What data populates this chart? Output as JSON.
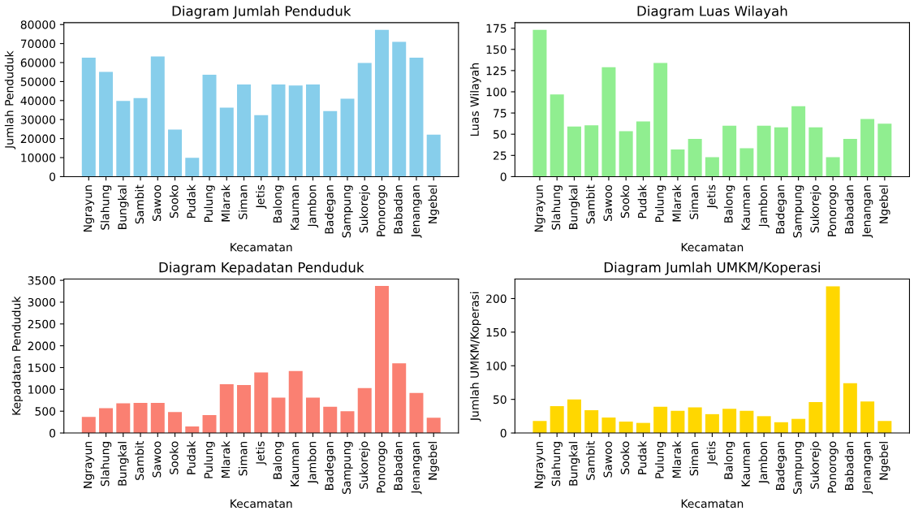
{
  "chart_data": [
    {
      "type": "bar",
      "title": "Diagram Jumlah Penduduk",
      "xlabel": "Kecamatan",
      "ylabel": "Jumlah Penduduk",
      "color": "#87ceeb",
      "categories": [
        "Ngrayun",
        "Slahung",
        "Bungkal",
        "Sambit",
        "Sawoo",
        "Sooko",
        "Pudak",
        "Pulung",
        "Mlarak",
        "Siman",
        "Jetis",
        "Balong",
        "Kauman",
        "Jambon",
        "Badegan",
        "Sampung",
        "Sukorejo",
        "Ponorogo",
        "Babadan",
        "Jenangan",
        "Ngebel"
      ],
      "values": [
        62600,
        55100,
        39800,
        41300,
        63200,
        24800,
        9900,
        53600,
        36300,
        48500,
        32300,
        48500,
        47900,
        48500,
        34500,
        41000,
        59800,
        77200,
        70900,
        62600,
        22100
      ],
      "ylim": [
        0,
        81000
      ],
      "yticks": [
        0,
        10000,
        20000,
        30000,
        40000,
        50000,
        60000,
        70000,
        80000
      ],
      "grid": false
    },
    {
      "type": "bar",
      "title": "Diagram Luas Wilayah",
      "xlabel": "Kecamatan",
      "ylabel": "Luas Wilayah",
      "color": "#90ee90",
      "categories": [
        "Ngrayun",
        "Slahung",
        "Bungkal",
        "Sambit",
        "Sawoo",
        "Sooko",
        "Pudak",
        "Pulung",
        "Mlarak",
        "Siman",
        "Jetis",
        "Balong",
        "Kauman",
        "Jambon",
        "Badegan",
        "Sampung",
        "Sukorejo",
        "Ponorogo",
        "Babadan",
        "Jenangan",
        "Ngebel"
      ],
      "values": [
        173,
        97,
        59,
        60.5,
        129,
        53.5,
        65,
        134,
        32,
        44.5,
        23,
        60,
        33.5,
        60,
        58,
        83,
        58,
        23,
        44.5,
        68,
        62.5
      ],
      "ylim": [
        0,
        181.5
      ],
      "yticks": [
        0,
        25,
        50,
        75,
        100,
        125,
        150,
        175
      ],
      "grid": false
    },
    {
      "type": "bar",
      "title": "Diagram Kepadatan Penduduk",
      "xlabel": "Kecamatan",
      "ylabel": "Kepadatan Penduduk",
      "color": "#fa8072",
      "categories": [
        "Ngrayun",
        "Slahung",
        "Bungkal",
        "Sambit",
        "Sawoo",
        "Sooko",
        "Pudak",
        "Pulung",
        "Mlarak",
        "Siman",
        "Jetis",
        "Balong",
        "Kauman",
        "Jambon",
        "Badegan",
        "Sampung",
        "Sukorejo",
        "Ponorogo",
        "Babadan",
        "Jenangan",
        "Ngebel"
      ],
      "values": [
        370,
        570,
        680,
        690,
        690,
        480,
        150,
        410,
        1120,
        1100,
        1390,
        810,
        1420,
        810,
        600,
        500,
        1030,
        3370,
        1600,
        920,
        350
      ],
      "ylim": [
        0,
        3530
      ],
      "yticks": [
        0,
        500,
        1000,
        1500,
        2000,
        2500,
        3000,
        3500
      ],
      "grid": false
    },
    {
      "type": "bar",
      "title": "Diagram Jumlah UMKM/Koperasi",
      "xlabel": "Kecamatan",
      "ylabel": "Jumlah UMKM/Koperasi",
      "color": "#ffd700",
      "categories": [
        "Ngrayun",
        "Slahung",
        "Bungkal",
        "Sambit",
        "Sawoo",
        "Sooko",
        "Pudak",
        "Pulung",
        "Mlarak",
        "Siman",
        "Jetis",
        "Balong",
        "Kauman",
        "Jambon",
        "Badegan",
        "Sampung",
        "Sukorejo",
        "Ponorogo",
        "Babadan",
        "Jenangan",
        "Ngebel"
      ],
      "values": [
        18,
        40,
        50,
        34,
        23,
        17,
        15,
        39,
        33,
        38,
        28,
        36,
        33,
        25,
        16,
        21,
        46,
        218,
        74,
        47,
        18
      ],
      "ylim": [
        0,
        229
      ],
      "yticks": [
        0,
        50,
        100,
        150,
        200
      ],
      "grid": false
    }
  ]
}
